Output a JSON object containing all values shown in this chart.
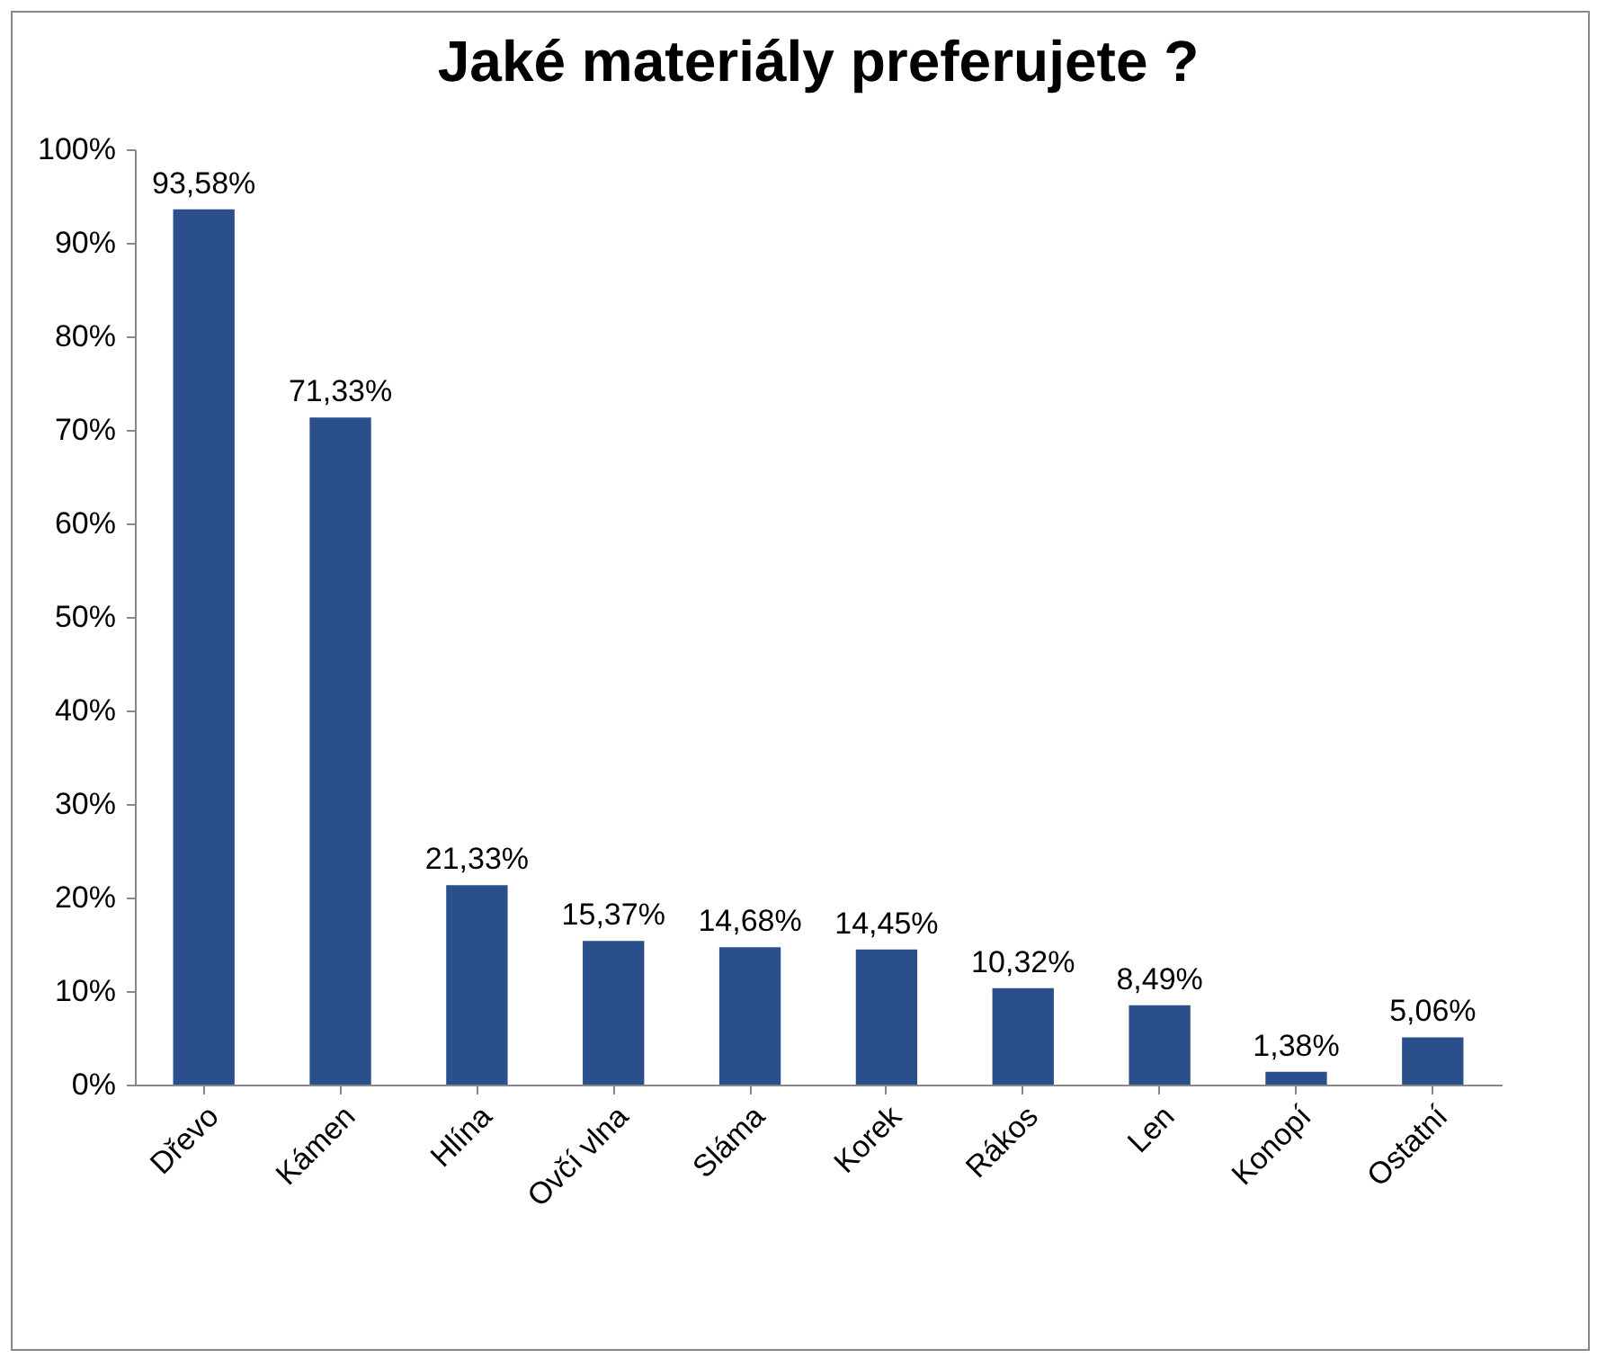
{
  "chart_data": {
    "type": "bar",
    "title": "Jaké materiály preferujete ?",
    "categories": [
      "Dřevo",
      "Kámen",
      "Hlína",
      "Ovčí vlna",
      "Sláma",
      "Korek",
      "Rákos",
      "Len",
      "Konopí",
      "Ostatní"
    ],
    "values": [
      93.58,
      71.33,
      21.33,
      15.37,
      14.68,
      14.45,
      10.32,
      8.49,
      1.38,
      5.06
    ],
    "value_labels": [
      "93,58%",
      "71,33%",
      "21,33%",
      "15,37%",
      "14,68%",
      "14,45%",
      "10,32%",
      "8,49%",
      "1,38%",
      "5,06%"
    ],
    "color": "#2a4f8a",
    "ylim": [
      0,
      100
    ],
    "yticks": [
      {
        "value": 0,
        "label": "0%"
      },
      {
        "value": 10,
        "label": "10%"
      },
      {
        "value": 20,
        "label": "20%"
      },
      {
        "value": 30,
        "label": "30%"
      },
      {
        "value": 40,
        "label": "40%"
      },
      {
        "value": 50,
        "label": "50%"
      },
      {
        "value": 60,
        "label": "60%"
      },
      {
        "value": 70,
        "label": "70%"
      },
      {
        "value": 80,
        "label": "80%"
      },
      {
        "value": 90,
        "label": "90%"
      },
      {
        "value": 100,
        "label": "100%"
      }
    ],
    "grid": false
  }
}
